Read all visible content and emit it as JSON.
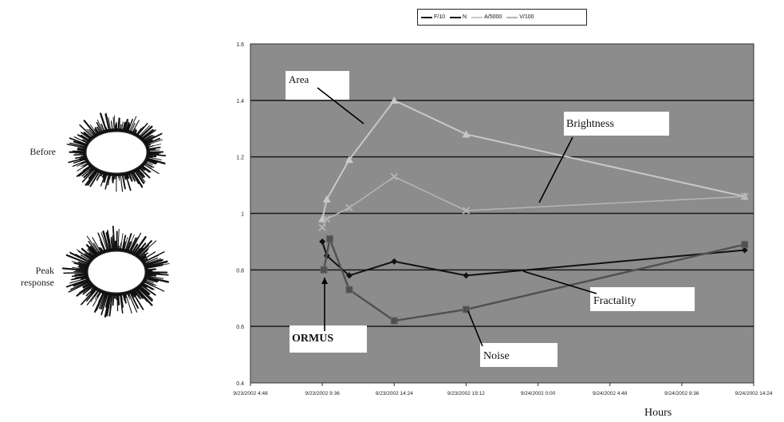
{
  "side_images": {
    "before_label": "Before",
    "peak_label_line1": "Peak",
    "peak_label_line2": "response"
  },
  "colors": {
    "plot_bg": "#8c8c8c",
    "gridline": "#1a1a1a",
    "fractality": "#111111",
    "noise": "#505050",
    "area": "#c8c8c8",
    "brightness": "#b4b4b4",
    "annotation_box": "#ffffff"
  },
  "chart_data": {
    "type": "line",
    "title": "",
    "xlabel": "Hours",
    "ylabel": "",
    "ylim": [
      0.4,
      1.6
    ],
    "yticks": [
      "0.4",
      "0.6",
      "0.8",
      "1",
      "1.2",
      "1.4",
      "1.6"
    ],
    "xticks": [
      "9/23/2002 4:48",
      "9/23/2002 9:36",
      "9/23/2002 14:24",
      "9/23/2002 19:12",
      "9/24/2002 0:00",
      "9/24/2002 4:48",
      "9/24/2002 9:36",
      "9/24/2002 14:24"
    ],
    "x_tick_hours": [
      0,
      4.8,
      9.6,
      14.4,
      19.2,
      24,
      28.8,
      33.6
    ],
    "grid": true,
    "legend": {
      "placement": "top",
      "entries": [
        "F/10",
        "N",
        "A/5000",
        "V/100"
      ]
    },
    "series": [
      {
        "name": "F/10",
        "x": [
          4.8,
          5.1,
          6.6,
          9.6,
          14.4,
          33.0
        ],
        "y": [
          0.9,
          0.85,
          0.78,
          0.83,
          0.78,
          0.87
        ]
      },
      {
        "name": "N",
        "x": [
          4.9,
          5.3,
          6.6,
          9.6,
          14.4,
          33.0
        ],
        "y": [
          0.8,
          0.91,
          0.73,
          0.62,
          0.66,
          0.89
        ]
      },
      {
        "name": "A/5000",
        "x": [
          4.8,
          5.1,
          6.6,
          9.6,
          14.4,
          33.0
        ],
        "y": [
          0.98,
          1.05,
          1.19,
          1.4,
          1.28,
          1.06
        ]
      },
      {
        "name": "V/100",
        "x": [
          4.8,
          5.1,
          6.6,
          9.6,
          14.4,
          33.0
        ],
        "y": [
          0.95,
          0.98,
          1.02,
          1.13,
          1.01,
          1.06
        ]
      }
    ],
    "annotations": [
      {
        "text": "Area",
        "series": "A/5000"
      },
      {
        "text": "Brightness",
        "series": "V/100"
      },
      {
        "text": "Fractality",
        "series": "F/10"
      },
      {
        "text": "Noise",
        "series": "N"
      },
      {
        "text": "ORMUS",
        "series": "start"
      }
    ]
  }
}
